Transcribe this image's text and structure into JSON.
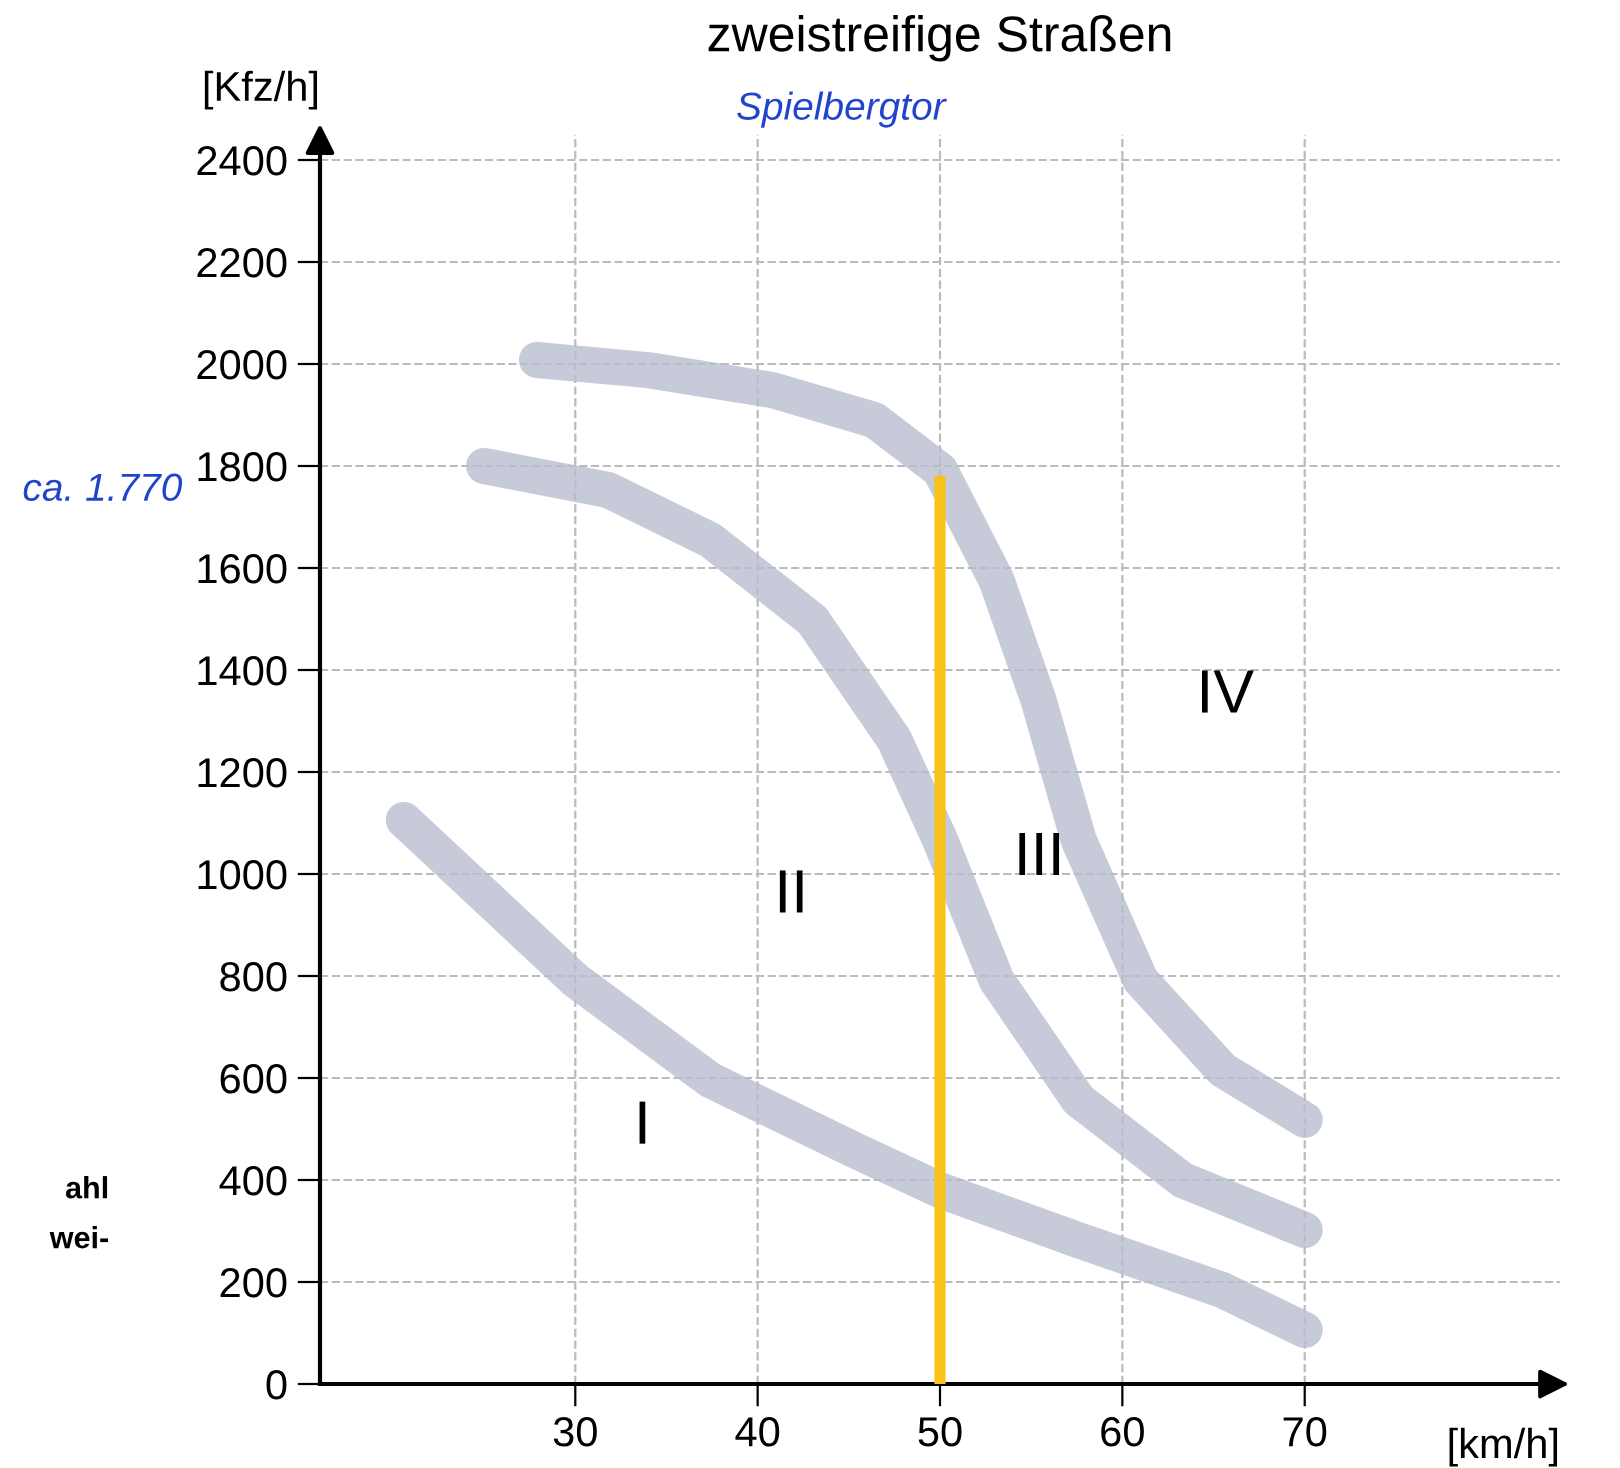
{
  "chart_data": {
    "type": "line",
    "title": "zweistreifige Straßen",
    "xlabel": "[km/h]",
    "ylabel": "[Kfz/h]",
    "xlim": [
      16,
      84
    ],
    "ylim": [
      0,
      2450
    ],
    "xticks": [
      30,
      40,
      50,
      60,
      70
    ],
    "yticks": [
      0,
      200,
      400,
      600,
      800,
      1000,
      1200,
      1400,
      1600,
      1800,
      2000,
      2200,
      2400
    ],
    "grid": true,
    "marker": "none",
    "line_style": "solid",
    "series": [
      {
        "color": "#b9bdd0",
        "x": [
          20.6,
          30,
          37.4,
          45.3,
          50,
          57.6,
          65.5,
          70
        ],
        "values": [
          1106,
          792,
          596,
          459,
          380,
          282,
          184,
          106
        ]
      },
      {
        "color": "#b9bdd0",
        "x": [
          25,
          31.8,
          37.4,
          43,
          47.5,
          50,
          53.1,
          57.6,
          63.3,
          70
        ],
        "values": [
          1800,
          1753,
          1655,
          1498,
          1263,
          1067,
          792,
          557,
          400,
          302
        ]
      },
      {
        "color": "#b9bdd0",
        "x": [
          27.9,
          34,
          40.8,
          46.4,
          50,
          53.1,
          55.4,
          57.6,
          61,
          65.5,
          70
        ],
        "values": [
          2008,
          1988,
          1949,
          1890,
          1792,
          1576,
          1341,
          1067,
          792,
          616,
          518
        ]
      }
    ],
    "ref_lines": [
      {
        "axis": "x",
        "value": 50,
        "color": "#f7c21a"
      }
    ],
    "annotations": [
      "I",
      "II",
      "III",
      "IV",
      "Spielbergtor",
      "ca. 1.770",
      "ahl",
      "wei-"
    ]
  }
}
